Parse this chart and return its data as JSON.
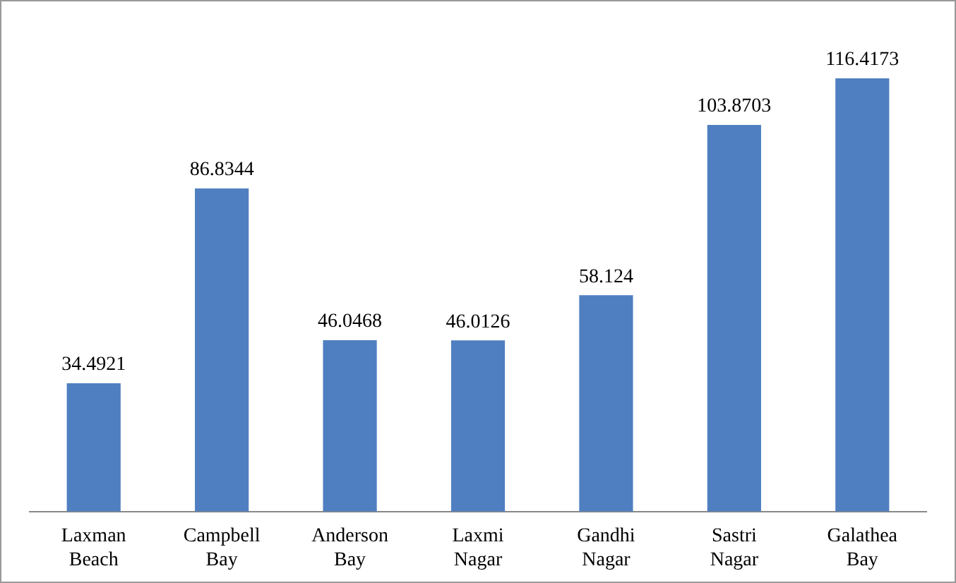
{
  "chart_data": {
    "type": "bar",
    "categories": [
      "Laxman Beach",
      "Campbell Bay",
      "Anderson Bay",
      "Laxmi Nagar",
      "Gandhi Nagar",
      "Sastri Nagar",
      "Galathea Bay"
    ],
    "values": [
      34.4921,
      86.8344,
      46.0468,
      46.0126,
      58.124,
      103.8703,
      116.4173
    ],
    "color": "#4f7fc0",
    "data_labels": true
  }
}
